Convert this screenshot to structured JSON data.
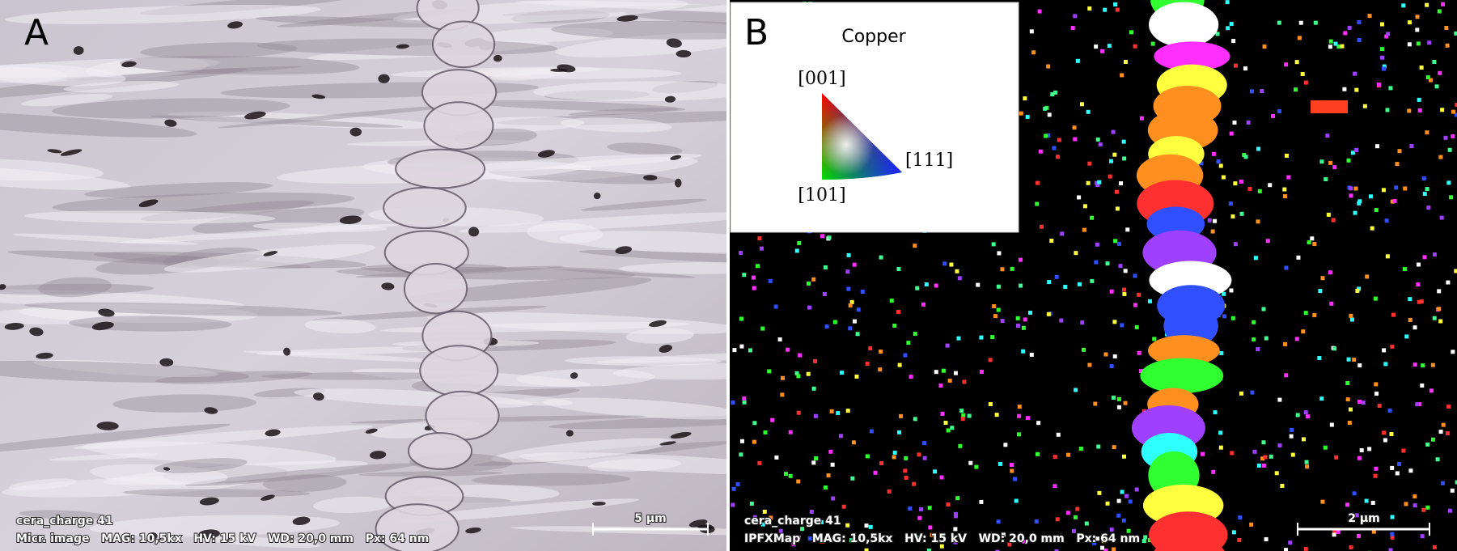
{
  "panels": [
    {
      "label": "A",
      "caption": {
        "sample": "cera_charge 41",
        "info": "Micr. image   MAG: 10,5kx   HV: 15 kV   WD: 20,0 mm   Px: 64 nm"
      },
      "scale_bar": "5 µm"
    },
    {
      "label": "B",
      "legend": {
        "title": "Copper",
        "corners": [
          "[001]",
          "[111]",
          "[101]"
        ]
      },
      "caption": {
        "sample": "cera_charge 41",
        "info": "IPFXMap   MAG: 10,5kx   HV: 15 kV   WD: 20,0 mm   Px: 64 nm"
      },
      "scale_bar": "2 µm"
    }
  ]
}
